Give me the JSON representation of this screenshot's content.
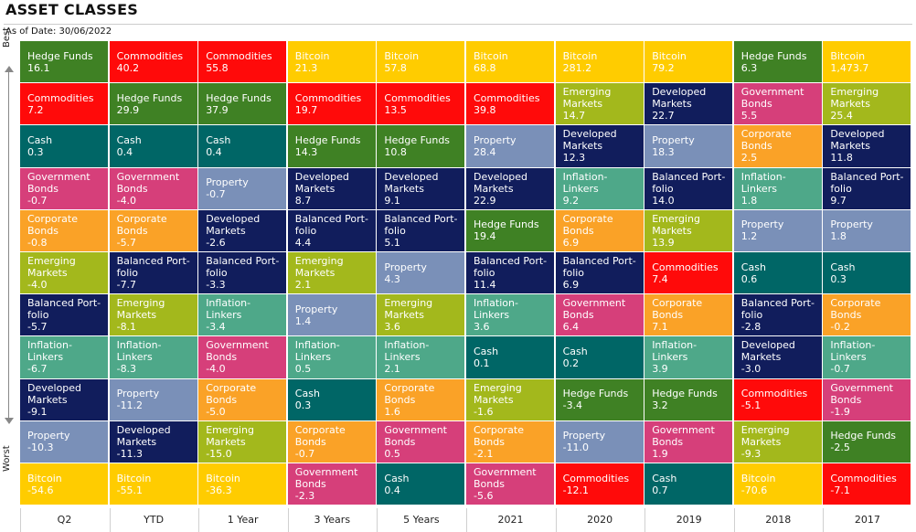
{
  "title": "ASSET CLASSES",
  "as_of": "As of Date: 30/06/2022",
  "axis": {
    "best": "Best",
    "worst": "Worst"
  },
  "colors": {
    "Hedge Funds": "#3f8124",
    "Commodities": "#ff0a0a",
    "Bitcoin": "#ffcc00",
    "Cash": "#006666",
    "Government Bonds": "#d63f7a",
    "Corporate Bonds": "#faa227",
    "Emerging Markets": "#a3b81c",
    "Balanced Portfolio": "#111d5c",
    "Inflation-Linkers": "#4ea889",
    "Developed Markets": "#111d5c",
    "Property": "#7a90b8"
  },
  "chart_data": {
    "type": "table",
    "title": "ASSET CLASSES",
    "subtitle": "As of Date: 30/06/2022",
    "categories": [
      "Q2",
      "YTD",
      "1 Year",
      "3 Years",
      "5 Years",
      "2021",
      "2020",
      "2019",
      "2018",
      "2017"
    ],
    "columns": [
      [
        {
          "asset": "Hedge Funds",
          "label": "Hedge Funds",
          "value": "16.1"
        },
        {
          "asset": "Commodities",
          "label": "Commodities",
          "value": "7.2"
        },
        {
          "asset": "Cash",
          "label": "Cash",
          "value": "0.3"
        },
        {
          "asset": "Government Bonds",
          "label": "Government\nBonds",
          "value": "-0.7"
        },
        {
          "asset": "Corporate Bonds",
          "label": "Corporate\nBonds",
          "value": "-0.8"
        },
        {
          "asset": "Emerging Markets",
          "label": "Emerging\nMarkets",
          "value": "-4.0"
        },
        {
          "asset": "Balanced Portfolio",
          "label": "Balanced Port-\nfolio",
          "value": "-5.7"
        },
        {
          "asset": "Inflation-Linkers",
          "label": "Inflation-\nLinkers",
          "value": "-6.7"
        },
        {
          "asset": "Developed Markets",
          "label": "Developed\nMarkets",
          "value": "-9.1"
        },
        {
          "asset": "Property",
          "label": "Property",
          "value": "-10.3"
        },
        {
          "asset": "Bitcoin",
          "label": "Bitcoin",
          "value": "-54.6"
        }
      ],
      [
        {
          "asset": "Commodities",
          "label": "Commodities",
          "value": "40.2"
        },
        {
          "asset": "Hedge Funds",
          "label": "Hedge Funds",
          "value": "29.9"
        },
        {
          "asset": "Cash",
          "label": "Cash",
          "value": "0.4"
        },
        {
          "asset": "Government Bonds",
          "label": "Government\nBonds",
          "value": "-4.0"
        },
        {
          "asset": "Corporate Bonds",
          "label": "Corporate\nBonds",
          "value": "-5.7"
        },
        {
          "asset": "Balanced Portfolio",
          "label": "Balanced Port-\nfolio",
          "value": "-7.7"
        },
        {
          "asset": "Emerging Markets",
          "label": "Emerging\nMarkets",
          "value": "-8.1"
        },
        {
          "asset": "Inflation-Linkers",
          "label": "Inflation-\nLinkers",
          "value": "-8.3"
        },
        {
          "asset": "Property",
          "label": "Property",
          "value": "-11.2"
        },
        {
          "asset": "Developed Markets",
          "label": "Developed\nMarkets",
          "value": "-11.3"
        },
        {
          "asset": "Bitcoin",
          "label": "Bitcoin",
          "value": "-55.1"
        }
      ],
      [
        {
          "asset": "Commodities",
          "label": "Commodities",
          "value": "55.8"
        },
        {
          "asset": "Hedge Funds",
          "label": "Hedge Funds",
          "value": "37.9"
        },
        {
          "asset": "Cash",
          "label": "Cash",
          "value": "0.4"
        },
        {
          "asset": "Property",
          "label": "Property",
          "value": "-0.7"
        },
        {
          "asset": "Developed Markets",
          "label": "Developed\nMarkets",
          "value": "-2.6"
        },
        {
          "asset": "Balanced Portfolio",
          "label": "Balanced Port-\nfolio",
          "value": "-3.3"
        },
        {
          "asset": "Inflation-Linkers",
          "label": "Inflation-\nLinkers",
          "value": "-3.4"
        },
        {
          "asset": "Government Bonds",
          "label": "Government\nBonds",
          "value": "-4.0"
        },
        {
          "asset": "Corporate Bonds",
          "label": "Corporate\nBonds",
          "value": "-5.0"
        },
        {
          "asset": "Emerging Markets",
          "label": "Emerging\nMarkets",
          "value": "-15.0"
        },
        {
          "asset": "Bitcoin",
          "label": "Bitcoin",
          "value": "-36.3"
        }
      ],
      [
        {
          "asset": "Bitcoin",
          "label": "Bitcoin",
          "value": "21.3"
        },
        {
          "asset": "Commodities",
          "label": "Commodities",
          "value": "19.7"
        },
        {
          "asset": "Hedge Funds",
          "label": "Hedge Funds",
          "value": "14.3"
        },
        {
          "asset": "Developed Markets",
          "label": "Developed\nMarkets",
          "value": "8.7"
        },
        {
          "asset": "Balanced Portfolio",
          "label": "Balanced Port-\nfolio",
          "value": "4.4"
        },
        {
          "asset": "Emerging Markets",
          "label": "Emerging\nMarkets",
          "value": "2.1"
        },
        {
          "asset": "Property",
          "label": "Property",
          "value": "1.4"
        },
        {
          "asset": "Inflation-Linkers",
          "label": "Inflation-\nLinkers",
          "value": "0.5"
        },
        {
          "asset": "Cash",
          "label": "Cash",
          "value": "0.3"
        },
        {
          "asset": "Corporate Bonds",
          "label": "Corporate\nBonds",
          "value": "-0.7"
        },
        {
          "asset": "Government Bonds",
          "label": "Government\nBonds",
          "value": "-2.3"
        }
      ],
      [
        {
          "asset": "Bitcoin",
          "label": "Bitcoin",
          "value": "57.8"
        },
        {
          "asset": "Commodities",
          "label": "Commodities",
          "value": "13.5"
        },
        {
          "asset": "Hedge Funds",
          "label": "Hedge Funds",
          "value": "10.8"
        },
        {
          "asset": "Developed Markets",
          "label": "Developed\nMarkets",
          "value": "9.1"
        },
        {
          "asset": "Balanced Portfolio",
          "label": "Balanced Port-\nfolio",
          "value": "5.1"
        },
        {
          "asset": "Property",
          "label": "Property",
          "value": "4.3"
        },
        {
          "asset": "Emerging Markets",
          "label": "Emerging\nMarkets",
          "value": "3.6"
        },
        {
          "asset": "Inflation-Linkers",
          "label": "Inflation-\nLinkers",
          "value": "2.1"
        },
        {
          "asset": "Corporate Bonds",
          "label": "Corporate\nBonds",
          "value": "1.6"
        },
        {
          "asset": "Government Bonds",
          "label": "Government\nBonds",
          "value": "0.5"
        },
        {
          "asset": "Cash",
          "label": "Cash",
          "value": "0.4"
        }
      ],
      [
        {
          "asset": "Bitcoin",
          "label": "Bitcoin",
          "value": "68.8"
        },
        {
          "asset": "Commodities",
          "label": "Commodities",
          "value": "39.8"
        },
        {
          "asset": "Property",
          "label": "Property",
          "value": "28.4"
        },
        {
          "asset": "Developed Markets",
          "label": "Developed\nMarkets",
          "value": "22.9"
        },
        {
          "asset": "Hedge Funds",
          "label": "Hedge Funds",
          "value": "19.4"
        },
        {
          "asset": "Balanced Portfolio",
          "label": "Balanced Port-\nfolio",
          "value": "11.4"
        },
        {
          "asset": "Inflation-Linkers",
          "label": "Inflation-\nLinkers",
          "value": "3.6"
        },
        {
          "asset": "Cash",
          "label": "Cash",
          "value": "0.1"
        },
        {
          "asset": "Emerging Markets",
          "label": "Emerging\nMarkets",
          "value": "-1.6"
        },
        {
          "asset": "Corporate Bonds",
          "label": "Corporate\nBonds",
          "value": "-2.1"
        },
        {
          "asset": "Government Bonds",
          "label": "Government\nBonds",
          "value": "-5.6"
        }
      ],
      [
        {
          "asset": "Bitcoin",
          "label": "Bitcoin",
          "value": "281.2"
        },
        {
          "asset": "Emerging Markets",
          "label": "Emerging\nMarkets",
          "value": "14.7"
        },
        {
          "asset": "Developed Markets",
          "label": "Developed\nMarkets",
          "value": "12.3"
        },
        {
          "asset": "Inflation-Linkers",
          "label": "Inflation-\nLinkers",
          "value": "9.2"
        },
        {
          "asset": "Corporate Bonds",
          "label": "Corporate\nBonds",
          "value": "6.9"
        },
        {
          "asset": "Balanced Portfolio",
          "label": "Balanced Port-\nfolio",
          "value": "6.9"
        },
        {
          "asset": "Government Bonds",
          "label": "Government\nBonds",
          "value": "6.4"
        },
        {
          "asset": "Cash",
          "label": "Cash",
          "value": "0.2"
        },
        {
          "asset": "Hedge Funds",
          "label": "Hedge Funds",
          "value": "-3.4"
        },
        {
          "asset": "Property",
          "label": "Property",
          "value": "-11.0"
        },
        {
          "asset": "Commodities",
          "label": "Commodities",
          "value": "-12.1"
        }
      ],
      [
        {
          "asset": "Bitcoin",
          "label": "Bitcoin",
          "value": "79.2"
        },
        {
          "asset": "Developed Markets",
          "label": "Developed\nMarkets",
          "value": "22.7"
        },
        {
          "asset": "Property",
          "label": "Property",
          "value": "18.3"
        },
        {
          "asset": "Balanced Portfolio",
          "label": "Balanced Port-\nfolio",
          "value": "14.0"
        },
        {
          "asset": "Emerging Markets",
          "label": "Emerging\nMarkets",
          "value": "13.9"
        },
        {
          "asset": "Commodities",
          "label": "Commodities",
          "value": "7.4"
        },
        {
          "asset": "Corporate Bonds",
          "label": "Corporate\nBonds",
          "value": "7.1"
        },
        {
          "asset": "Inflation-Linkers",
          "label": "Inflation-\nLinkers",
          "value": "3.9"
        },
        {
          "asset": "Hedge Funds",
          "label": "Hedge Funds",
          "value": "3.2"
        },
        {
          "asset": "Government Bonds",
          "label": "Government\nBonds",
          "value": "1.9"
        },
        {
          "asset": "Cash",
          "label": "Cash",
          "value": "0.7"
        }
      ],
      [
        {
          "asset": "Hedge Funds",
          "label": "Hedge Funds",
          "value": "6.3"
        },
        {
          "asset": "Government Bonds",
          "label": "Government\nBonds",
          "value": "5.5"
        },
        {
          "asset": "Corporate Bonds",
          "label": "Corporate\nBonds",
          "value": "2.5"
        },
        {
          "asset": "Inflation-Linkers",
          "label": "Inflation-\nLinkers",
          "value": "1.8"
        },
        {
          "asset": "Property",
          "label": "Property",
          "value": "1.2"
        },
        {
          "asset": "Cash",
          "label": "Cash",
          "value": "0.6"
        },
        {
          "asset": "Balanced Portfolio",
          "label": "Balanced Port-\nfolio",
          "value": "-2.8"
        },
        {
          "asset": "Developed Markets",
          "label": "Developed\nMarkets",
          "value": "-3.0"
        },
        {
          "asset": "Commodities",
          "label": "Commodities",
          "value": "-5.1"
        },
        {
          "asset": "Emerging Markets",
          "label": "Emerging\nMarkets",
          "value": "-9.3"
        },
        {
          "asset": "Bitcoin",
          "label": "Bitcoin",
          "value": "-70.6"
        }
      ],
      [
        {
          "asset": "Bitcoin",
          "label": "Bitcoin",
          "value": "1,473.7"
        },
        {
          "asset": "Emerging Markets",
          "label": "Emerging\nMarkets",
          "value": "25.4"
        },
        {
          "asset": "Developed Markets",
          "label": "Developed\nMarkets",
          "value": "11.8"
        },
        {
          "asset": "Balanced Portfolio",
          "label": "Balanced Port-\nfolio",
          "value": "9.7"
        },
        {
          "asset": "Property",
          "label": "Property",
          "value": "1.8"
        },
        {
          "asset": "Cash",
          "label": "Cash",
          "value": "0.3"
        },
        {
          "asset": "Corporate Bonds",
          "label": "Corporate\nBonds",
          "value": "-0.2"
        },
        {
          "asset": "Inflation-Linkers",
          "label": "Inflation-\nLinkers",
          "value": "-0.7"
        },
        {
          "asset": "Government Bonds",
          "label": "Government\nBonds",
          "value": "-1.9"
        },
        {
          "asset": "Hedge Funds",
          "label": "Hedge Funds",
          "value": "-2.5"
        },
        {
          "asset": "Commodities",
          "label": "Commodities",
          "value": "-7.1"
        }
      ]
    ]
  }
}
